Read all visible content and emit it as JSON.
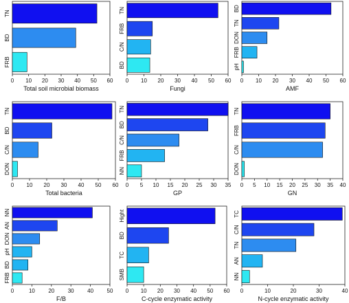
{
  "figure": "3x3 grid of horizontal bar charts",
  "colors": {
    "deep_blue": "#1010F0",
    "blue": "#1E46F0",
    "mid_blue": "#2D8CF0",
    "sky_blue": "#22B4F2",
    "cyan": "#2EE8F2"
  },
  "chart_data": [
    {
      "type": "bar",
      "orientation": "horizontal",
      "xlabel": "Total soil microbial biomass",
      "categories": [
        "TN",
        "BD",
        "FRB"
      ],
      "values": [
        52,
        39,
        9
      ],
      "colors": [
        "#1010F0",
        "#2D8CF0",
        "#2EE8F2"
      ],
      "xlim": [
        0,
        60
      ],
      "xticks": [
        0,
        10,
        20,
        30,
        40,
        50,
        60
      ]
    },
    {
      "type": "bar",
      "orientation": "horizontal",
      "xlabel": "Fungi",
      "categories": [
        "TN",
        "FRB",
        "C/N",
        "BD"
      ],
      "values": [
        54,
        15,
        14,
        13.5
      ],
      "colors": [
        "#1010F0",
        "#1E46F0",
        "#22B4F2",
        "#2EE8F2"
      ],
      "xlim": [
        0,
        60
      ],
      "xticks": [
        0,
        10,
        20,
        30,
        40,
        50,
        60
      ]
    },
    {
      "type": "bar",
      "orientation": "horizontal",
      "xlabel": "AMF",
      "categories": [
        "BD",
        "TN",
        "DON",
        "FRB",
        "pH"
      ],
      "values": [
        53,
        22,
        15,
        9,
        1
      ],
      "colors": [
        "#1010F0",
        "#1E46F0",
        "#2D8CF0",
        "#22B4F2",
        "#2EE8F2"
      ],
      "xlim": [
        0,
        60
      ],
      "xticks": [
        0,
        10,
        20,
        30,
        40,
        50,
        60
      ]
    },
    {
      "type": "bar",
      "orientation": "horizontal",
      "xlabel": "Total bacteria",
      "categories": [
        "TN",
        "BD",
        "C/N",
        "DON"
      ],
      "values": [
        58,
        23,
        15,
        3
      ],
      "colors": [
        "#1010F0",
        "#1E46F0",
        "#2D8CF0",
        "#2EE8F2"
      ],
      "xlim": [
        0,
        60
      ],
      "xticks": [
        0,
        10,
        20,
        30,
        40,
        50,
        60
      ]
    },
    {
      "type": "bar",
      "orientation": "horizontal",
      "xlabel": "GP",
      "categories": [
        "TN",
        "BD",
        "C/N",
        "FRB",
        "NN"
      ],
      "values": [
        35,
        28,
        18,
        13,
        5
      ],
      "colors": [
        "#1010F0",
        "#1E46F0",
        "#2D8CF0",
        "#22B4F2",
        "#2EE8F2"
      ],
      "xlim": [
        0,
        35
      ],
      "xticks": [
        0,
        5,
        10,
        15,
        20,
        25,
        30,
        35
      ]
    },
    {
      "type": "bar",
      "orientation": "horizontal",
      "xlabel": "GN",
      "categories": [
        "TN",
        "FRB",
        "C/N",
        "DON"
      ],
      "values": [
        35,
        33,
        32,
        1
      ],
      "colors": [
        "#1010F0",
        "#1E46F0",
        "#2D8CF0",
        "#2EE8F2"
      ],
      "xlim": [
        0,
        40
      ],
      "xticks": [
        0,
        5,
        10,
        15,
        20,
        25,
        30,
        35,
        40
      ]
    },
    {
      "type": "bar",
      "orientation": "horizontal",
      "xlabel": "F/B",
      "categories": [
        "NN",
        "AN",
        "DON",
        "pH",
        "BD",
        "FRB"
      ],
      "values": [
        41,
        23,
        14,
        10,
        8,
        5
      ],
      "colors": [
        "#1010F0",
        "#1E46F0",
        "#2D8CF0",
        "#22B4F2",
        "#22B4F2",
        "#2EE8F2"
      ],
      "xlim": [
        0,
        50
      ],
      "xticks": [
        0,
        10,
        20,
        30,
        40,
        50
      ]
    },
    {
      "type": "bar",
      "orientation": "horizontal",
      "xlabel": "C-cycle enzymatic activity",
      "categories": [
        "Hight",
        "BD",
        "TC",
        "SMB"
      ],
      "values": [
        53,
        25,
        13,
        10
      ],
      "colors": [
        "#1010F0",
        "#1E46F0",
        "#22B4F2",
        "#2EE8F2"
      ],
      "xlim": [
        0,
        60
      ],
      "xticks": [
        0,
        10,
        20,
        30,
        40,
        50,
        60
      ]
    },
    {
      "type": "bar",
      "orientation": "horizontal",
      "xlabel": "N-cycle enzymatic activity",
      "categories": [
        "TC",
        "C/N",
        "TN",
        "AN",
        "NN"
      ],
      "values": [
        39,
        28,
        21,
        8,
        3
      ],
      "colors": [
        "#1010F0",
        "#1E46F0",
        "#2D8CF0",
        "#22B4F2",
        "#2EE8F2"
      ],
      "xlim": [
        0,
        40
      ],
      "xticks": [
        0,
        10,
        20,
        30,
        40
      ]
    }
  ]
}
